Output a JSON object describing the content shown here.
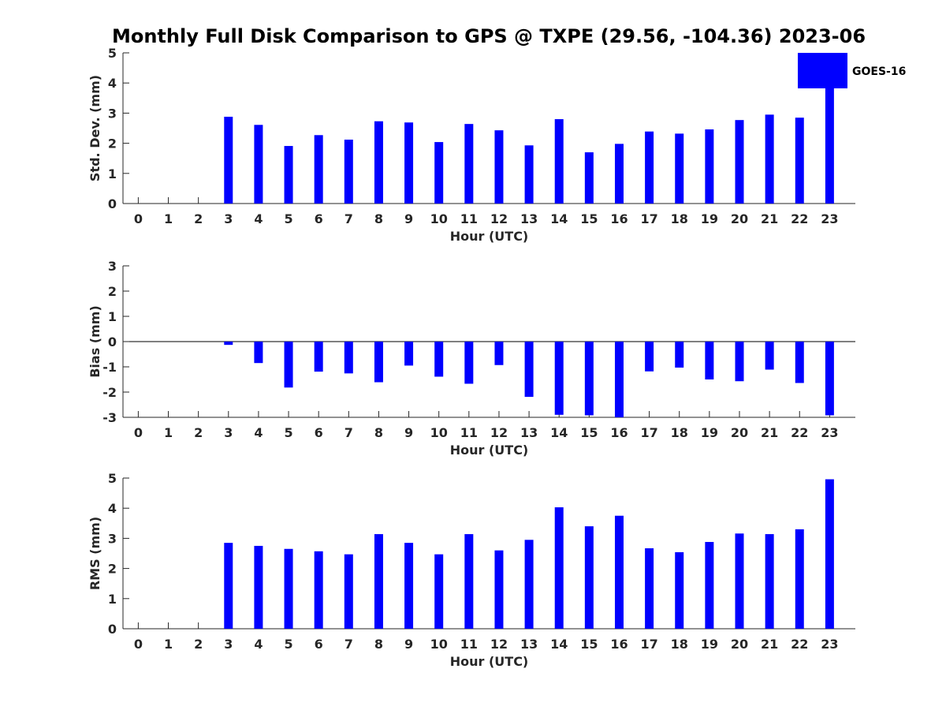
{
  "title": "Monthly Full Disk Comparison to GPS @ TXPE (29.56, -104.36) 2023-06",
  "legend": {
    "label": "GOES-16",
    "color": "#0000ff"
  },
  "chart_data": [
    {
      "type": "bar",
      "title": "Monthly Full Disk Comparison to GPS @ TXPE (29.56, -104.36) 2023-06",
      "xlabel": "Hour (UTC)",
      "ylabel": "Std. Dev. (mm)",
      "ylim": [
        0,
        5
      ],
      "yticks": [
        "0",
        "1",
        "2",
        "3",
        "4",
        "5"
      ],
      "categories": [
        "0",
        "1",
        "2",
        "3",
        "4",
        "5",
        "6",
        "7",
        "8",
        "9",
        "10",
        "11",
        "12",
        "13",
        "14",
        "15",
        "16",
        "17",
        "18",
        "19",
        "20",
        "21",
        "22",
        "23"
      ],
      "series": [
        {
          "name": "GOES-16",
          "color": "#0000ff",
          "values": [
            null,
            null,
            null,
            2.88,
            2.61,
            1.91,
            2.27,
            2.12,
            2.73,
            2.69,
            2.04,
            2.64,
            2.43,
            1.93,
            2.8,
            1.7,
            1.98,
            2.39,
            2.32,
            2.46,
            2.77,
            2.95,
            2.85,
            4.5
          ]
        }
      ],
      "grid": false,
      "legend_position": "top-right"
    },
    {
      "type": "bar",
      "xlabel": "Hour (UTC)",
      "ylabel": "Bias (mm)",
      "ylim": [
        -3,
        3
      ],
      "yticks": [
        "-3",
        "-2",
        "-1",
        "0",
        "1",
        "2",
        "3"
      ],
      "categories": [
        "0",
        "1",
        "2",
        "3",
        "4",
        "5",
        "6",
        "7",
        "8",
        "9",
        "10",
        "11",
        "12",
        "13",
        "14",
        "15",
        "16",
        "17",
        "18",
        "19",
        "20",
        "21",
        "22",
        "23"
      ],
      "series": [
        {
          "name": "GOES-16",
          "color": "#0000ff",
          "values": [
            null,
            null,
            null,
            -0.13,
            -0.85,
            -1.82,
            -1.19,
            -1.26,
            -1.61,
            -0.95,
            -1.39,
            -1.67,
            -0.93,
            -2.19,
            -2.9,
            -2.92,
            -3.0,
            -1.18,
            -1.03,
            -1.5,
            -1.57,
            -1.11,
            -1.64,
            -2.92
          ]
        }
      ],
      "grid": false
    },
    {
      "type": "bar",
      "xlabel": "Hour (UTC)",
      "ylabel": "RMS (mm)",
      "ylim": [
        0,
        5
      ],
      "yticks": [
        "0",
        "1",
        "2",
        "3",
        "4",
        "5"
      ],
      "categories": [
        "0",
        "1",
        "2",
        "3",
        "4",
        "5",
        "6",
        "7",
        "8",
        "9",
        "10",
        "11",
        "12",
        "13",
        "14",
        "15",
        "16",
        "17",
        "18",
        "19",
        "20",
        "21",
        "22",
        "23"
      ],
      "series": [
        {
          "name": "GOES-16",
          "color": "#0000ff",
          "values": [
            null,
            null,
            null,
            2.85,
            2.75,
            2.65,
            2.57,
            2.47,
            3.14,
            2.85,
            2.47,
            3.14,
            2.6,
            2.95,
            4.03,
            3.4,
            3.75,
            2.67,
            2.54,
            2.88,
            3.16,
            3.14,
            3.3,
            4.96
          ]
        }
      ],
      "grid": false
    }
  ]
}
